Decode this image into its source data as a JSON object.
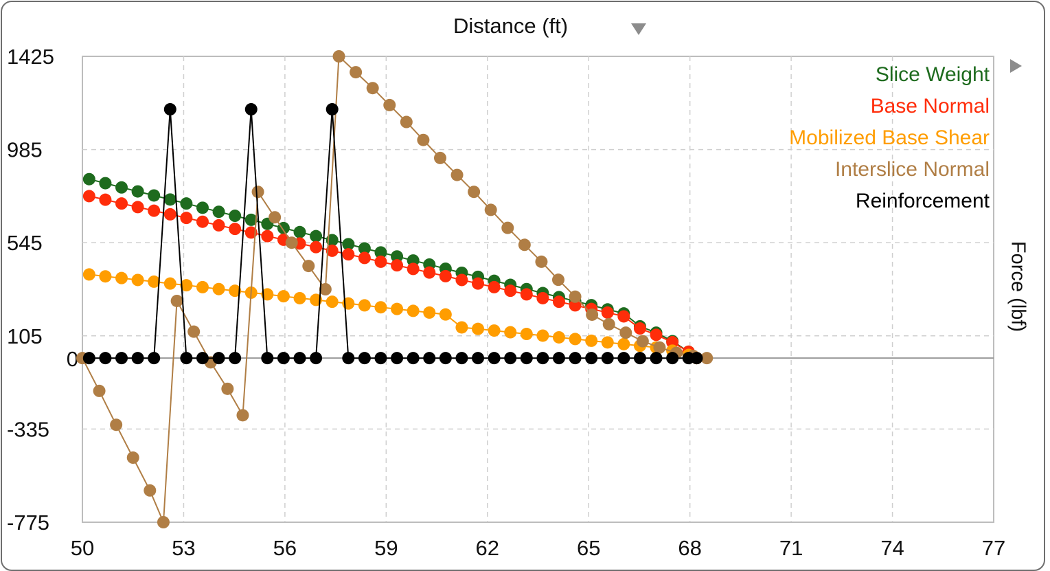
{
  "chart_data": {
    "type": "line",
    "xlabel": "Distance (ft)",
    "ylabel": "Force (lbf)",
    "xlim": [
      50,
      77
    ],
    "ylim": [
      -775,
      1425
    ],
    "x_ticks": [
      "50",
      "53",
      "56",
      "59",
      "62",
      "65",
      "68",
      "71",
      "74",
      "77"
    ],
    "y_ticks": [
      "1425",
      "985",
      "545",
      "105",
      "-335",
      "-775"
    ],
    "zero_label": "0",
    "grid": true,
    "legend_position": "top-right",
    "series": [
      {
        "name": "Slice Weight",
        "color": "#1e6b1e",
        "x": [
          50.2,
          50.68,
          51.16,
          51.64,
          52.12,
          52.6,
          53.08,
          53.56,
          54.04,
          54.52,
          55.0,
          55.48,
          55.96,
          56.44,
          56.92,
          57.4,
          57.88,
          58.36,
          58.84,
          59.32,
          59.8,
          60.28,
          60.76,
          61.24,
          61.72,
          62.2,
          62.68,
          63.16,
          63.64,
          64.12,
          64.6,
          65.08,
          65.56,
          66.04,
          66.52,
          67.0,
          67.48,
          67.96,
          68.2
        ],
        "y": [
          845,
          826,
          806,
          787,
          768,
          749,
          730,
          710,
          691,
          672,
          653,
          634,
          614,
          595,
          576,
          557,
          538,
          518,
          499,
          480,
          461,
          442,
          422,
          403,
          384,
          365,
          346,
          326,
          307,
          288,
          269,
          250,
          230,
          211,
          150,
          120,
          80,
          30,
          0
        ]
      },
      {
        "name": "Base Normal",
        "color": "#ff2d0a",
        "x": [
          50.2,
          50.68,
          51.16,
          51.64,
          52.12,
          52.6,
          53.08,
          53.56,
          54.04,
          54.52,
          55.0,
          55.48,
          55.96,
          56.44,
          56.92,
          57.4,
          57.88,
          58.36,
          58.84,
          59.32,
          59.8,
          60.28,
          60.76,
          61.24,
          61.72,
          62.2,
          62.68,
          63.16,
          63.64,
          64.12,
          64.6,
          65.08,
          65.56,
          66.04,
          66.52,
          67.0,
          67.48,
          67.96,
          68.2
        ],
        "y": [
          765,
          748,
          730,
          713,
          696,
          679,
          662,
          644,
          627,
          610,
          593,
          576,
          559,
          541,
          524,
          507,
          490,
          473,
          455,
          438,
          421,
          404,
          387,
          369,
          352,
          335,
          318,
          301,
          283,
          266,
          249,
          232,
          215,
          197,
          140,
          110,
          75,
          30,
          0
        ]
      },
      {
        "name": "Mobilized Base Shear",
        "color": "#ff9d00",
        "x": [
          50.2,
          50.68,
          51.16,
          51.64,
          52.12,
          52.6,
          53.08,
          53.56,
          54.04,
          54.52,
          55.0,
          55.48,
          55.96,
          56.44,
          56.92,
          57.4,
          57.88,
          58.36,
          58.84,
          59.32,
          59.8,
          60.28,
          60.76,
          61.24,
          61.72,
          62.2,
          62.68,
          63.16,
          63.64,
          64.12,
          64.6,
          65.08,
          65.56,
          66.04,
          66.52,
          67.0,
          67.48,
          67.96,
          68.2
        ],
        "y": [
          395,
          386,
          378,
          369,
          361,
          352,
          344,
          335,
          326,
          318,
          309,
          301,
          292,
          283,
          275,
          266,
          258,
          249,
          240,
          232,
          223,
          215,
          206,
          145,
          138,
          130,
          122,
          114,
          106,
          98,
          90,
          82,
          74,
          66,
          58,
          50,
          35,
          15,
          0
        ]
      },
      {
        "name": "Interslice Normal",
        "color": "#b07e45",
        "x": [
          50.0,
          50.5,
          51.0,
          51.5,
          52.0,
          52.4,
          52.8,
          53.3,
          53.8,
          54.3,
          54.75,
          55.2,
          55.7,
          56.2,
          56.7,
          57.2,
          57.6,
          58.1,
          58.6,
          59.1,
          59.6,
          60.1,
          60.6,
          61.1,
          61.6,
          62.1,
          62.6,
          63.1,
          63.6,
          64.1,
          64.6,
          65.1,
          65.6,
          66.1,
          66.6,
          67.1,
          67.6,
          68.1,
          68.5
        ],
        "y": [
          0,
          -155,
          -315,
          -470,
          -625,
          -775,
          270,
          125,
          -20,
          -145,
          -270,
          785,
          665,
          545,
          435,
          325,
          1425,
          1350,
          1275,
          1195,
          1115,
          1030,
          945,
          865,
          785,
          700,
          615,
          535,
          455,
          370,
          290,
          205,
          160,
          120,
          80,
          50,
          25,
          10,
          0
        ]
      },
      {
        "name": "Reinforcement",
        "color": "#000000",
        "x": [
          50.2,
          50.68,
          51.16,
          51.64,
          52.12,
          52.6,
          53.08,
          53.56,
          54.04,
          54.52,
          55.0,
          55.48,
          55.96,
          56.44,
          56.92,
          57.4,
          57.88,
          58.36,
          58.84,
          59.32,
          59.8,
          60.28,
          60.76,
          61.24,
          61.72,
          62.2,
          62.68,
          63.16,
          63.64,
          64.12,
          64.6,
          65.08,
          65.56,
          66.04,
          66.52,
          67.0,
          67.48,
          67.96,
          68.2
        ],
        "y": [
          0,
          0,
          0,
          0,
          0,
          1175,
          0,
          0,
          0,
          0,
          1175,
          0,
          0,
          0,
          0,
          1175,
          0,
          0,
          0,
          0,
          0,
          0,
          0,
          0,
          0,
          0,
          0,
          0,
          0,
          0,
          0,
          0,
          0,
          0,
          0,
          0,
          0,
          0,
          0
        ]
      }
    ]
  }
}
